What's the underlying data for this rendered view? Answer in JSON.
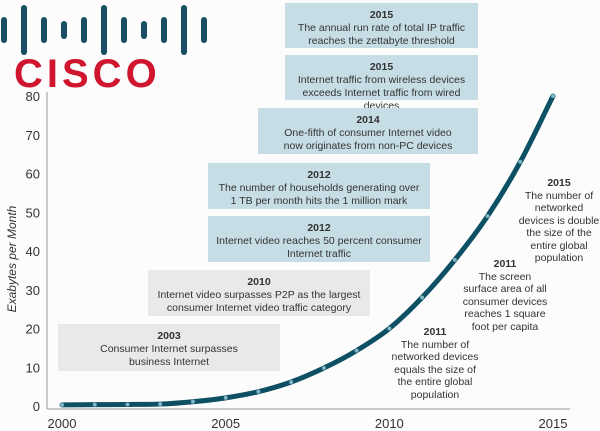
{
  "logo": {
    "text": "CISCO"
  },
  "chart_data": {
    "type": "area",
    "title": "",
    "xlabel": "",
    "ylabel": "Exabytes per Month",
    "x": [
      2000,
      2001,
      2002,
      2003,
      2004,
      2005,
      2006,
      2007,
      2008,
      2009,
      2010,
      2011,
      2012,
      2013,
      2014,
      2015
    ],
    "values": [
      0.3,
      0.35,
      0.4,
      0.5,
      1.1,
      2.1,
      3.7,
      6.2,
      9.8,
      14.3,
      20,
      28,
      37.7,
      49,
      63,
      80
    ],
    "xlim": [
      2000,
      2015
    ],
    "ylim": [
      0,
      80
    ],
    "xticks": [
      "2000",
      "2005",
      "2010",
      "2015"
    ],
    "yticks": [
      "0",
      "10",
      "20",
      "30",
      "40",
      "50",
      "60",
      "70",
      "80"
    ],
    "colors": {
      "line": "#0d4f63",
      "dot": "#7fb4c4",
      "blue_box": "#c6dde5",
      "gray_box": "#e9e9e9",
      "logo_red": "#d0152e",
      "logo_blue": "#1b4e63"
    },
    "annotations": [
      {
        "year": "2015",
        "text": "The annual run rate of total IP traffic reaches the zettabyte threshold",
        "style": "blue"
      },
      {
        "year": "2015",
        "text": "Internet traffic from wireless devices exceeds Internet traffic from wired devices",
        "style": "blue"
      },
      {
        "year": "2014",
        "text": "One-fifth of consumer Internet video now originates from non-PC devices",
        "style": "blue"
      },
      {
        "year": "2012",
        "text": "The number of households generating over 1 TB per month hits the 1 million mark",
        "style": "blue"
      },
      {
        "year": "2012",
        "text": "Internet video reaches 50 percent consumer Internet traffic",
        "style": "blue"
      },
      {
        "year": "2010",
        "text": "Internet video surpasses P2P as the largest consumer Internet video traffic category",
        "style": "gray"
      },
      {
        "year": "2003",
        "text": "Consumer Internet surpasses business Internet",
        "style": "gray"
      },
      {
        "year": "2015",
        "text": "The number of networked devices is double the size of the entire global population",
        "style": "plain"
      },
      {
        "year": "2011",
        "text": "The screen surface area of all consumer devices reaches 1 square foot per capita",
        "style": "plain"
      },
      {
        "year": "2011",
        "text": "The number of networked devices equals the size of the entire global population",
        "style": "plain"
      }
    ]
  }
}
